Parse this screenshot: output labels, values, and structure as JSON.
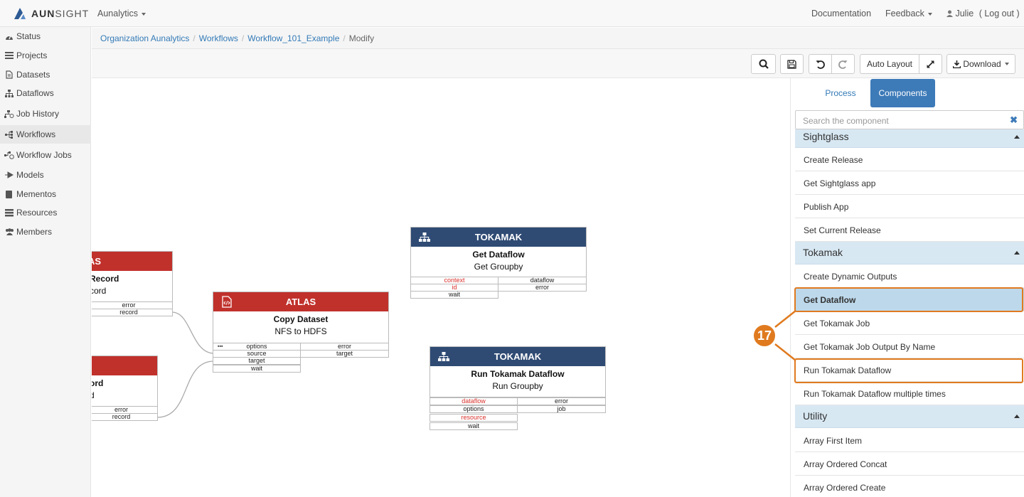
{
  "app": {
    "logo_text_strong": "AUN",
    "logo_text_light": "SIGHT",
    "nav_org": "Aunalytics",
    "nav_docs": "Documentation",
    "nav_feedback": "Feedback",
    "nav_user": "Julie",
    "nav_logout": "( Log out )"
  },
  "sidebar": {
    "items": [
      {
        "label": "Status",
        "icon": "dashboard-icon"
      },
      {
        "label": "Projects",
        "icon": "list-icon"
      },
      {
        "label": "Datasets",
        "icon": "file-icon"
      },
      {
        "label": "Dataflows",
        "icon": "sitemap-icon"
      },
      {
        "label": "Job History",
        "icon": "job-history-icon"
      },
      {
        "label": "Workflows",
        "icon": "workflow-icon"
      },
      {
        "label": "Workflow Jobs",
        "icon": "workflow-jobs-icon"
      },
      {
        "label": "Models",
        "icon": "model-icon"
      },
      {
        "label": "Mementos",
        "icon": "book-icon"
      },
      {
        "label": "Resources",
        "icon": "resources-icon"
      },
      {
        "label": "Members",
        "icon": "users-icon"
      }
    ]
  },
  "breadcrumb": {
    "items": [
      "Organization Aunalytics",
      "Workflows",
      "Workflow_101_Example"
    ],
    "current": "Modify"
  },
  "toolbar": {
    "auto_layout": "Auto Layout",
    "download": "Download"
  },
  "canvas": {
    "nodes": [
      {
        "header": "TOKAMAK",
        "title": "Get Dataflow",
        "subtitle": "Get Groupby",
        "inputs": [
          "context",
          "id",
          "wait"
        ],
        "outputs": [
          "dataflow",
          "error"
        ]
      },
      {
        "header": "TOKAMAK",
        "title": "Run Tokamak Dataflow",
        "subtitle": "Run Groupby",
        "inputs": [
          "dataflow",
          "options",
          "resource",
          "wait"
        ],
        "outputs": [
          "error",
          "job"
        ]
      },
      {
        "header": "ATLAS",
        "title": "Copy Dataset",
        "subtitle": "NFS to HDFS",
        "inputs": [
          "options",
          "source",
          "target",
          "wait"
        ],
        "outputs": [
          "error",
          "target"
        ]
      },
      {
        "header": "AS",
        "title": "Record",
        "subtitle": "cord",
        "outputs": [
          "error",
          "record"
        ]
      },
      {
        "title": "ord",
        "subtitle": "d",
        "outputs": [
          "error",
          "record"
        ]
      }
    ],
    "options_dots": "▪▪▪"
  },
  "panel": {
    "tabs": [
      "Process",
      "Components"
    ],
    "search_placeholder": "Search the component",
    "groups": [
      {
        "name": "Sightglass",
        "items": [
          "Create Release",
          "Get Sightglass app",
          "Publish App",
          "Set Current Release"
        ]
      },
      {
        "name": "Tokamak",
        "items": [
          "Create Dynamic Outputs",
          "Get Dataflow",
          "Get Tokamak Job",
          "Get Tokamak Job Output By Name",
          "Run Tokamak Dataflow",
          "Run Tokamak Dataflow multiple times"
        ]
      },
      {
        "name": "Utility",
        "items": [
          "Array First Item",
          "Array Ordered Concat",
          "Array Ordered Create"
        ]
      }
    ],
    "selected_item": "Get Dataflow"
  },
  "callout": {
    "number": "17"
  },
  "colors": {
    "accent": "#3d7ab8",
    "tokamak": "#2f4b74",
    "atlas": "#c0312c",
    "highlight": "#e07a1f",
    "group_bg": "#d8e8f3"
  }
}
